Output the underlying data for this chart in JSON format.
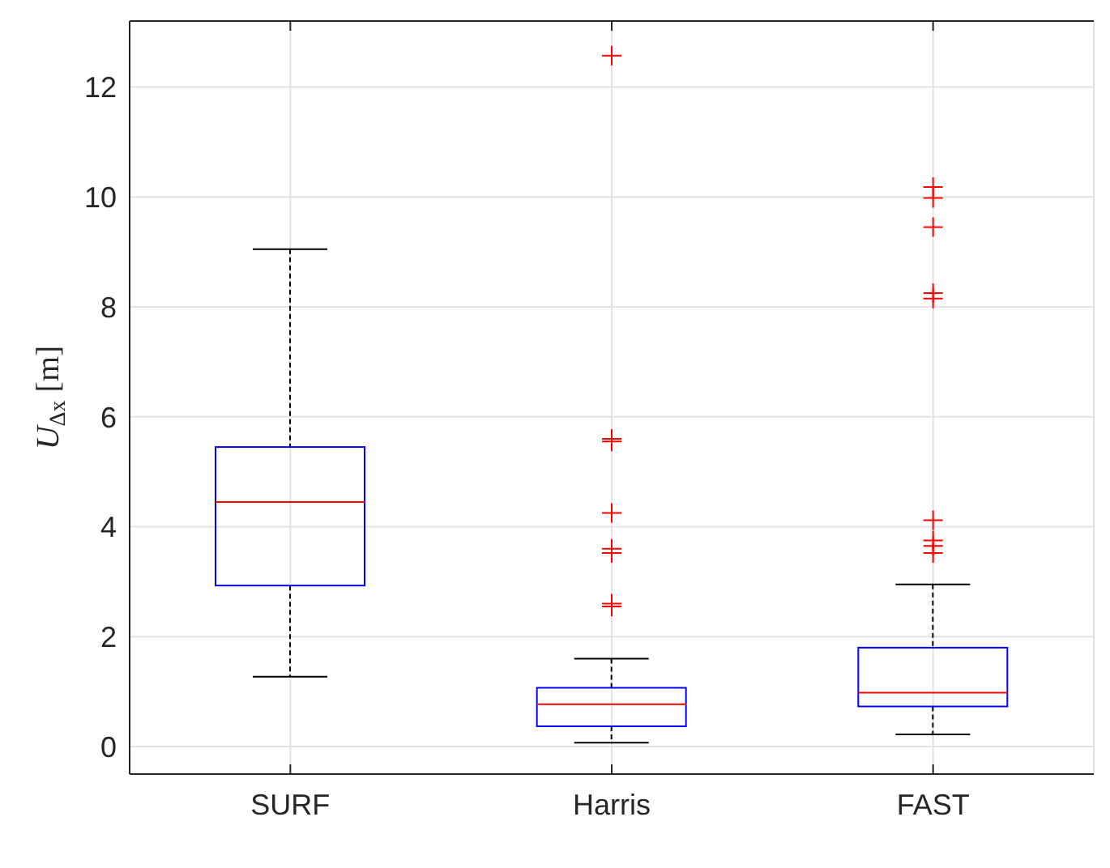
{
  "chart_data": {
    "type": "box",
    "ylabel": "U$_{Δx}$ [m]",
    "categories": [
      "SURF",
      "Harris",
      "FAST"
    ],
    "boxes": [
      {
        "low": 1.27,
        "q1": 2.93,
        "median": 4.45,
        "q3": 5.45,
        "high": 9.05
      },
      {
        "low": 0.07,
        "q1": 0.37,
        "median": 0.77,
        "q3": 1.07,
        "high": 1.6,
        "outliers": [
          12.57,
          5.6,
          5.55,
          4.25,
          3.6,
          3.52,
          2.6,
          2.55
        ]
      },
      {
        "low": 0.22,
        "q1": 0.73,
        "median": 0.98,
        "q3": 1.8,
        "high": 2.95,
        "outliers": [
          10.18,
          9.98,
          9.45,
          8.25,
          8.15,
          4.12,
          3.75,
          3.65,
          3.52
        ]
      }
    ],
    "ylim": [
      -0.5,
      13.2
    ],
    "yticks": [
      0,
      2,
      4,
      6,
      8,
      10,
      12
    ],
    "grid": true
  }
}
